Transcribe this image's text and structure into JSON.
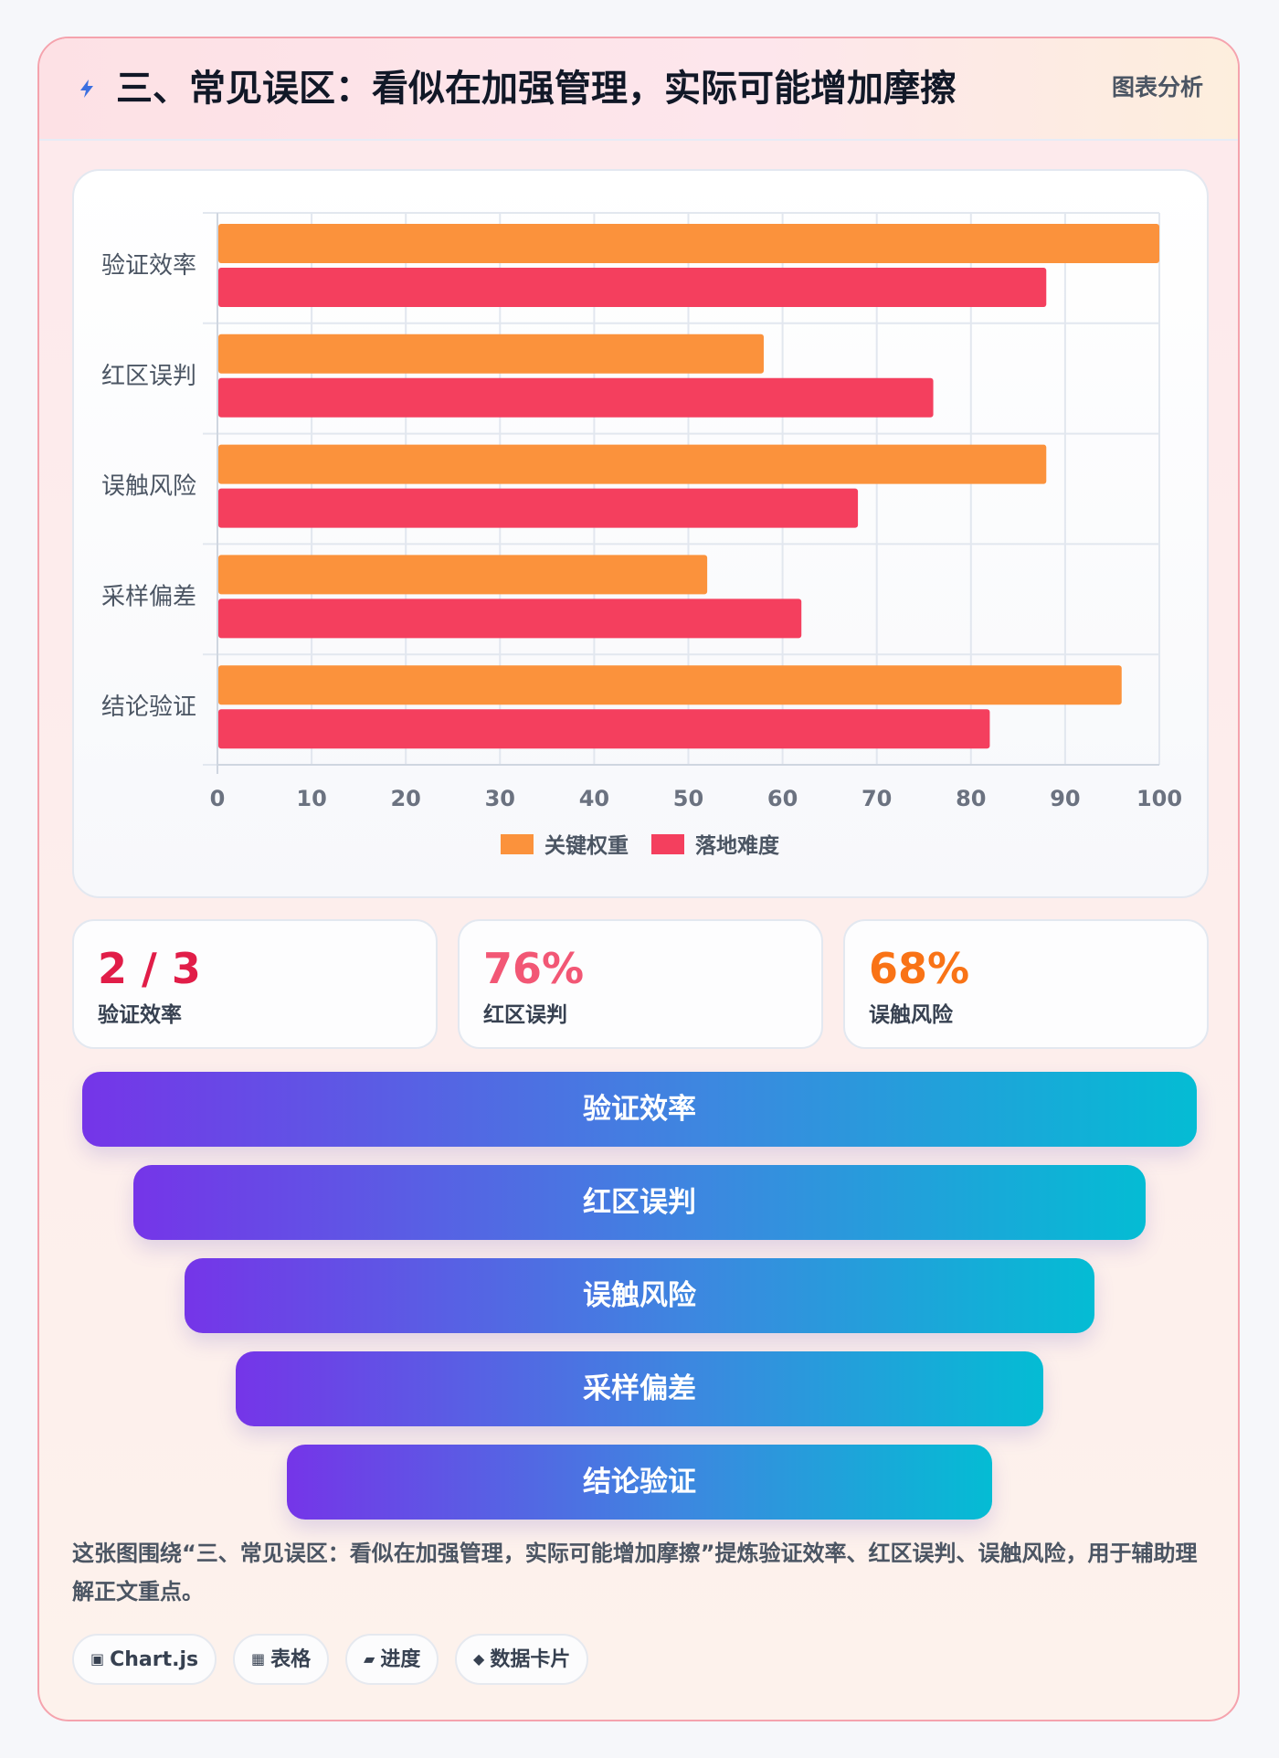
{
  "header": {
    "title": "三、常见误区：看似在加强管理，实际可能增加摩擦",
    "tag": "图表分析",
    "icon": "lightning-icon"
  },
  "chart_data": {
    "type": "bar",
    "orientation": "horizontal",
    "categories": [
      "验证效率",
      "红区误判",
      "误触风险",
      "采样偏差",
      "结论验证"
    ],
    "series": [
      {
        "name": "关键权重",
        "color": "#fb923c",
        "values": [
          100,
          58,
          88,
          52,
          96
        ]
      },
      {
        "name": "落地难度",
        "color": "#f43f5e",
        "values": [
          88,
          76,
          68,
          62,
          82
        ]
      }
    ],
    "xlim": [
      0,
      100
    ],
    "xticks": [
      0,
      10,
      20,
      30,
      40,
      50,
      60,
      70,
      80,
      90,
      100
    ],
    "grid": true,
    "legend_position": "bottom"
  },
  "stats": [
    {
      "value": "2 / 3",
      "label": "验证效率",
      "color": "#e11d48"
    },
    {
      "value": "76%",
      "label": "红区误判",
      "color": "#f25775"
    },
    {
      "value": "68%",
      "label": "误触风险",
      "color": "#f97316"
    }
  ],
  "funnel": [
    "验证效率",
    "红区误判",
    "误触风险",
    "采样偏差",
    "结论验证"
  ],
  "description": "这张图围绕“三、常见误区：看似在加强管理，实际可能增加摩擦”提炼验证效率、红区误判、误触风险，用于辅助理解正文重点。",
  "chips": [
    {
      "icon": "▣",
      "label": "Chart.js"
    },
    {
      "icon": "▦",
      "label": "表格"
    },
    {
      "icon": "▰",
      "label": "进度"
    },
    {
      "icon": "◆",
      "label": "数据卡片"
    }
  ]
}
